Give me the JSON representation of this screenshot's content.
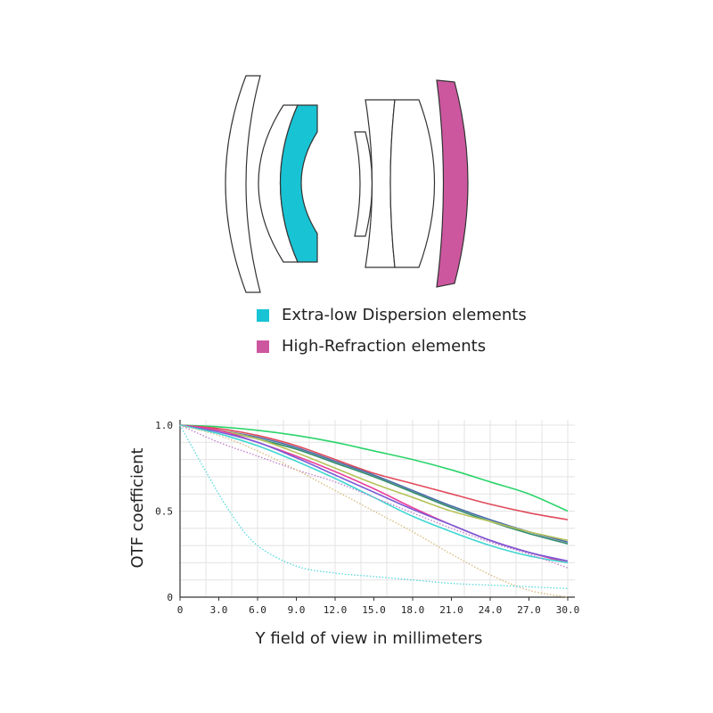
{
  "lens_legend": [
    {
      "label": "Extra-low Dispersion elements",
      "color": "#18c3d4"
    },
    {
      "label": "High-Refraction elements",
      "color": "#cc579f"
    }
  ],
  "chart_data": {
    "type": "line",
    "xlabel": "Y field of view in millimeters",
    "ylabel": "OTF coefficient",
    "xlim": [
      0,
      30
    ],
    "ylim": [
      0,
      1
    ],
    "x_ticks": [
      "0",
      "3.0",
      "6.0",
      "9.0",
      "12.0",
      "15.0",
      "18.0",
      "21.0",
      "24.0",
      "27.0",
      "30.0"
    ],
    "y_ticks": [
      {
        "value": 0,
        "label": "0"
      },
      {
        "value": 0.5,
        "label": "0.5"
      },
      {
        "value": 1,
        "label": "1.0"
      }
    ],
    "grid": true,
    "series": [
      {
        "color": "#2ad46a",
        "style": "solid",
        "x": [
          0,
          3,
          6,
          9,
          12,
          15,
          18,
          21,
          24,
          27,
          30
        ],
        "y": [
          1.0,
          0.99,
          0.97,
          0.94,
          0.9,
          0.85,
          0.8,
          0.74,
          0.67,
          0.6,
          0.5
        ]
      },
      {
        "color": "#e04a5a",
        "style": "solid",
        "x": [
          0,
          3,
          6,
          9,
          12,
          15,
          18,
          21,
          24,
          27,
          30
        ],
        "y": [
          1.0,
          0.98,
          0.94,
          0.88,
          0.8,
          0.72,
          0.66,
          0.6,
          0.54,
          0.49,
          0.45
        ]
      },
      {
        "color": "#4a6aa8",
        "style": "solid",
        "x": [
          0,
          3,
          6,
          9,
          12,
          15,
          18,
          21,
          24,
          27,
          30
        ],
        "y": [
          1.0,
          0.97,
          0.93,
          0.87,
          0.79,
          0.71,
          0.62,
          0.53,
          0.45,
          0.38,
          0.32
        ]
      },
      {
        "color": "#2e8a6a",
        "style": "solid",
        "x": [
          0,
          3,
          6,
          9,
          12,
          15,
          18,
          21,
          24,
          27,
          30
        ],
        "y": [
          1.0,
          0.97,
          0.92,
          0.86,
          0.78,
          0.7,
          0.61,
          0.52,
          0.44,
          0.37,
          0.31
        ]
      },
      {
        "color": "#b6c25a",
        "style": "solid",
        "x": [
          0,
          3,
          6,
          9,
          12,
          15,
          18,
          21,
          24,
          27,
          30
        ],
        "y": [
          1.0,
          0.97,
          0.92,
          0.84,
          0.75,
          0.66,
          0.58,
          0.5,
          0.44,
          0.38,
          0.33
        ]
      },
      {
        "color": "#ea3f9a",
        "style": "solid",
        "x": [
          0,
          3,
          6,
          9,
          12,
          15,
          18,
          21,
          24,
          27,
          30
        ],
        "y": [
          1.0,
          0.97,
          0.9,
          0.82,
          0.73,
          0.63,
          0.52,
          0.42,
          0.33,
          0.26,
          0.2
        ]
      },
      {
        "color": "#7a5ad6",
        "style": "solid",
        "x": [
          0,
          3,
          6,
          9,
          12,
          15,
          18,
          21,
          24,
          27,
          30
        ],
        "y": [
          1.0,
          0.96,
          0.9,
          0.81,
          0.71,
          0.61,
          0.51,
          0.42,
          0.33,
          0.26,
          0.21
        ]
      },
      {
        "color": "#3fd6d2",
        "style": "solid",
        "x": [
          0,
          3,
          6,
          9,
          12,
          15,
          18,
          21,
          24,
          27,
          30
        ],
        "y": [
          1.0,
          0.95,
          0.88,
          0.79,
          0.69,
          0.58,
          0.47,
          0.38,
          0.3,
          0.24,
          0.2
        ]
      },
      {
        "color": "#c07acc",
        "style": "dotted",
        "x": [
          0,
          3,
          6,
          9,
          12,
          15,
          18,
          21,
          24,
          27,
          30
        ],
        "y": [
          1.0,
          0.9,
          0.82,
          0.74,
          0.67,
          0.58,
          0.49,
          0.4,
          0.32,
          0.25,
          0.17
        ]
      },
      {
        "color": "#d8b87a",
        "style": "dotted",
        "x": [
          0,
          3,
          6,
          9,
          12,
          15,
          18,
          21,
          24,
          27,
          30
        ],
        "y": [
          1.0,
          0.94,
          0.85,
          0.74,
          0.62,
          0.5,
          0.38,
          0.25,
          0.13,
          0.04,
          0.0
        ]
      },
      {
        "color": "#56d8de",
        "style": "dotted",
        "x": [
          0,
          2,
          4,
          6,
          9,
          12,
          15,
          18,
          21,
          24,
          27,
          30
        ],
        "y": [
          1.0,
          0.73,
          0.48,
          0.3,
          0.18,
          0.14,
          0.12,
          0.1,
          0.08,
          0.07,
          0.06,
          0.05
        ]
      }
    ]
  }
}
